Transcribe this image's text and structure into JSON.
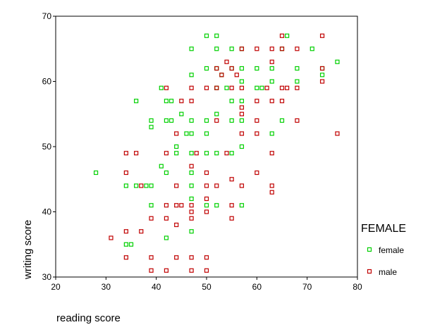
{
  "chart_data": {
    "type": "scatter",
    "xlabel": "reading score",
    "ylabel": "writing score",
    "xlim": [
      20,
      80
    ],
    "ylim": [
      30,
      70
    ],
    "x_ticks": [
      20,
      30,
      40,
      50,
      60,
      70,
      80
    ],
    "y_ticks": [
      30,
      40,
      50,
      60,
      70
    ],
    "grid": false,
    "legend": {
      "title": "FEMALE",
      "position": "right"
    },
    "series": [
      {
        "name": "female",
        "color": "#00d000",
        "marker": "square",
        "points": [
          [
            28,
            46
          ],
          [
            34,
            44
          ],
          [
            34,
            35
          ],
          [
            35,
            35
          ],
          [
            36,
            57
          ],
          [
            36,
            44
          ],
          [
            38,
            44
          ],
          [
            39,
            54
          ],
          [
            39,
            53
          ],
          [
            39,
            44
          ],
          [
            39,
            41
          ],
          [
            41,
            59
          ],
          [
            41,
            47
          ],
          [
            42,
            57
          ],
          [
            42,
            54
          ],
          [
            42,
            46
          ],
          [
            42,
            36
          ],
          [
            43,
            57
          ],
          [
            43,
            54
          ],
          [
            44,
            50
          ],
          [
            44,
            49
          ],
          [
            45,
            55
          ],
          [
            46,
            52
          ],
          [
            47,
            65
          ],
          [
            47,
            61
          ],
          [
            47,
            54
          ],
          [
            47,
            52
          ],
          [
            47,
            49
          ],
          [
            47,
            46
          ],
          [
            47,
            44
          ],
          [
            47,
            42
          ],
          [
            47,
            37
          ],
          [
            50,
            67
          ],
          [
            50,
            62
          ],
          [
            50,
            54
          ],
          [
            50,
            52
          ],
          [
            50,
            49
          ],
          [
            50,
            41
          ],
          [
            52,
            67
          ],
          [
            52,
            65
          ],
          [
            52,
            62
          ],
          [
            52,
            59
          ],
          [
            52,
            55
          ],
          [
            52,
            49
          ],
          [
            52,
            41
          ],
          [
            53,
            61
          ],
          [
            54,
            59
          ],
          [
            55,
            65
          ],
          [
            55,
            62
          ],
          [
            55,
            57
          ],
          [
            55,
            54
          ],
          [
            55,
            49
          ],
          [
            57,
            65
          ],
          [
            57,
            62
          ],
          [
            57,
            60
          ],
          [
            57,
            57
          ],
          [
            57,
            54
          ],
          [
            57,
            50
          ],
          [
            57,
            41
          ],
          [
            60,
            62
          ],
          [
            60,
            59
          ],
          [
            61,
            59
          ],
          [
            63,
            62
          ],
          [
            63,
            60
          ],
          [
            63,
            52
          ],
          [
            65,
            65
          ],
          [
            65,
            54
          ],
          [
            66,
            67
          ],
          [
            68,
            62
          ],
          [
            68,
            60
          ],
          [
            71,
            65
          ],
          [
            73,
            62
          ],
          [
            73,
            61
          ],
          [
            76,
            63
          ]
        ]
      },
      {
        "name": "male",
        "color": "#c00000",
        "marker": "square",
        "points": [
          [
            31,
            36
          ],
          [
            34,
            49
          ],
          [
            34,
            46
          ],
          [
            34,
            37
          ],
          [
            34,
            33
          ],
          [
            36,
            49
          ],
          [
            37,
            44
          ],
          [
            37,
            37
          ],
          [
            39,
            39
          ],
          [
            39,
            33
          ],
          [
            39,
            31
          ],
          [
            42,
            59
          ],
          [
            42,
            49
          ],
          [
            42,
            41
          ],
          [
            42,
            39
          ],
          [
            42,
            31
          ],
          [
            44,
            52
          ],
          [
            44,
            44
          ],
          [
            44,
            41
          ],
          [
            44,
            38
          ],
          [
            44,
            33
          ],
          [
            45,
            57
          ],
          [
            45,
            41
          ],
          [
            47,
            59
          ],
          [
            47,
            57
          ],
          [
            47,
            47
          ],
          [
            47,
            41
          ],
          [
            47,
            40
          ],
          [
            47,
            39
          ],
          [
            47,
            33
          ],
          [
            47,
            31
          ],
          [
            48,
            49
          ],
          [
            50,
            59
          ],
          [
            50,
            46
          ],
          [
            50,
            44
          ],
          [
            50,
            42
          ],
          [
            50,
            40
          ],
          [
            50,
            33
          ],
          [
            50,
            31
          ],
          [
            52,
            62
          ],
          [
            52,
            59
          ],
          [
            52,
            54
          ],
          [
            52,
            44
          ],
          [
            53,
            61
          ],
          [
            54,
            63
          ],
          [
            54,
            49
          ],
          [
            55,
            62
          ],
          [
            55,
            59
          ],
          [
            55,
            45
          ],
          [
            55,
            41
          ],
          [
            55,
            39
          ],
          [
            56,
            61
          ],
          [
            57,
            65
          ],
          [
            57,
            59
          ],
          [
            57,
            56
          ],
          [
            57,
            55
          ],
          [
            57,
            52
          ],
          [
            57,
            44
          ],
          [
            60,
            65
          ],
          [
            60,
            57
          ],
          [
            60,
            54
          ],
          [
            60,
            52
          ],
          [
            60,
            46
          ],
          [
            62,
            59
          ],
          [
            63,
            65
          ],
          [
            63,
            63
          ],
          [
            63,
            57
          ],
          [
            63,
            49
          ],
          [
            63,
            44
          ],
          [
            63,
            43
          ],
          [
            65,
            67
          ],
          [
            65,
            65
          ],
          [
            65,
            59
          ],
          [
            65,
            57
          ],
          [
            66,
            59
          ],
          [
            68,
            65
          ],
          [
            68,
            59
          ],
          [
            68,
            54
          ],
          [
            73,
            67
          ],
          [
            73,
            62
          ],
          [
            73,
            60
          ],
          [
            76,
            52
          ]
        ]
      }
    ]
  }
}
